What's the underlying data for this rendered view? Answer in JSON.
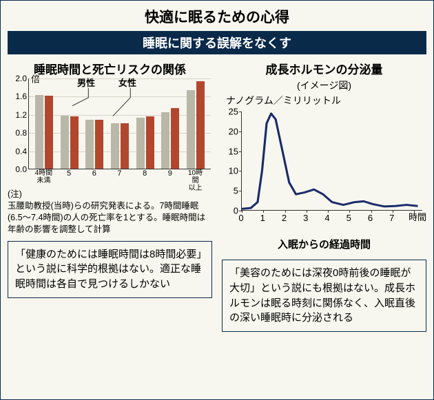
{
  "title": "快適に眠るための心得",
  "banner": "睡眠に関する誤解をなくす",
  "left": {
    "title": "睡眠時間と死亡リスクの関係",
    "chart": {
      "type": "bar",
      "ylim": [
        0,
        2.0
      ],
      "yticks": [
        0,
        0.4,
        0.8,
        1.2,
        1.6,
        2.0
      ],
      "y_unit_label": "倍",
      "categories": [
        "4時間\n未満",
        "5",
        "6",
        "7",
        "8",
        "9",
        "10時間\n以上"
      ],
      "male": [
        1.62,
        1.17,
        1.07,
        1.0,
        1.12,
        1.25,
        1.73
      ],
      "female": [
        1.6,
        1.15,
        1.07,
        1.0,
        1.15,
        1.33,
        1.92
      ],
      "male_color": "#b9b7a8",
      "female_color": "#b2472d",
      "grid_color": "#d8d4c8",
      "legend": {
        "male": "男性",
        "female": "女性"
      }
    },
    "note_prefix": "(注)",
    "note": "玉腰助教授(当時)らの研究発表による。7時間睡眠(6.5〜7.4時間)の人の死亡率を1とする。睡眠時間は年齢の影響を調整して計算",
    "callout": "「健康のためには睡眠時間は8時間必要」という説に科学的根拠はない。適正な睡眠時間は各自で見つけるしかない"
  },
  "right": {
    "title": "成長ホルモンの分泌量",
    "subtitle": "(イメージ図)",
    "y_unit": "ナノグラム／ミリリットル",
    "chart": {
      "type": "line",
      "xlim": [
        0,
        8
      ],
      "xticks": [
        0,
        1,
        2,
        3,
        4,
        5,
        6,
        7,
        8
      ],
      "x_unit": "時間",
      "ylim": [
        0,
        25
      ],
      "yticks": [
        0,
        5,
        10,
        15,
        20,
        25
      ],
      "line_color": "#1a2a6c",
      "line_width": 3,
      "points": [
        [
          0.0,
          0.3
        ],
        [
          0.4,
          0.5
        ],
        [
          0.7,
          2.0
        ],
        [
          0.9,
          10.0
        ],
        [
          1.1,
          22.0
        ],
        [
          1.3,
          24.5
        ],
        [
          1.5,
          23.0
        ],
        [
          1.8,
          15.0
        ],
        [
          2.1,
          7.0
        ],
        [
          2.4,
          4.0
        ],
        [
          2.8,
          4.5
        ],
        [
          3.2,
          5.2
        ],
        [
          3.6,
          4.0
        ],
        [
          4.0,
          2.0
        ],
        [
          4.5,
          1.3
        ],
        [
          5.0,
          2.0
        ],
        [
          5.4,
          2.2
        ],
        [
          5.8,
          1.5
        ],
        [
          6.3,
          0.9
        ],
        [
          6.8,
          1.0
        ],
        [
          7.3,
          1.3
        ],
        [
          7.8,
          1.0
        ]
      ]
    },
    "xlabel": "入眠からの経過時間",
    "callout": "「美容のためには深夜0時前後の睡眠が大切」という説にも根拠はない。成長ホルモンは眠る時刻に関係なく、入眠直後の深い睡眠時に分泌される"
  }
}
